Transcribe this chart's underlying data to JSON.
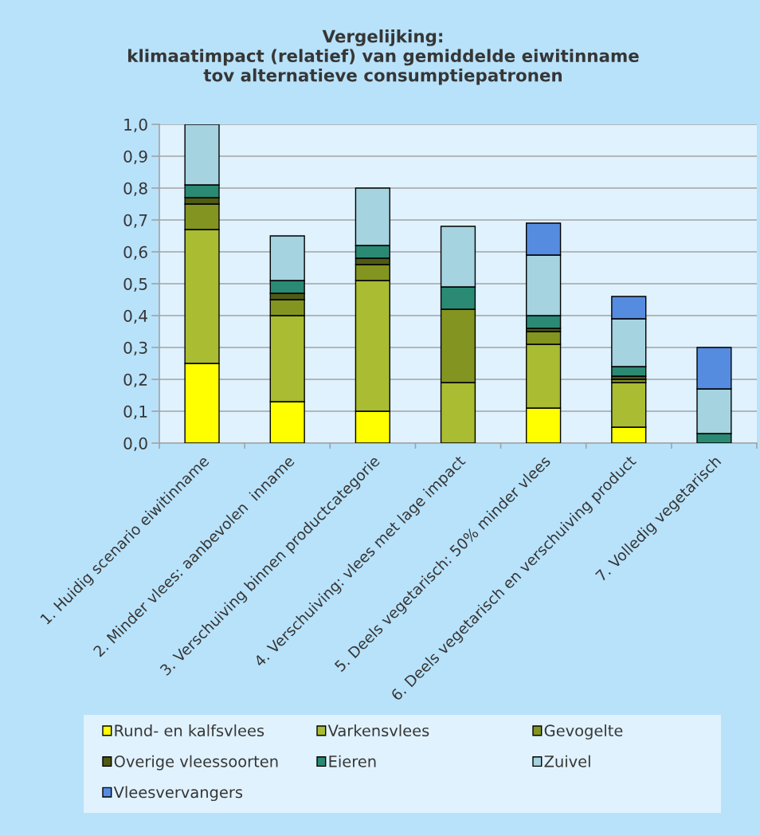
{
  "chart_data": {
    "type": "bar",
    "stacked": true,
    "title": "Vergelijking:\nklimaatimpact (relatief) van gemiddelde eiwitinname\ntov alternatieve consumptiepatronen",
    "categories": [
      "1. Huidig scenario eiwitinname",
      "2. Minder vlees: aanbevolen  inname",
      "3. Verschuiving binnen productcategorie",
      "4. Verschuiving: vlees met lage impact",
      "5. Deels vegetarisch: 50% minder vlees",
      "6. Deels vegetarisch en verschuiving product",
      "7. Volledig vegetarisch"
    ],
    "series": [
      {
        "name": "Rund- en kalfsvlees",
        "color": "#ffff00",
        "values": [
          0.25,
          0.13,
          0.1,
          null,
          0.11,
          0.05,
          null
        ]
      },
      {
        "name": "Varkensvlees",
        "color": "#a9bc32",
        "values": [
          0.42,
          0.27,
          0.41,
          0.19,
          0.2,
          0.14,
          null
        ]
      },
      {
        "name": "Gevogelte",
        "color": "#849420",
        "values": [
          0.08,
          0.05,
          0.05,
          0.23,
          0.04,
          0.01,
          null
        ]
      },
      {
        "name": "Overige vleessoorten",
        "color": "#4f5a14",
        "values": [
          0.02,
          0.02,
          0.02,
          null,
          0.01,
          0.01,
          null
        ]
      },
      {
        "name": "Eieren",
        "color": "#2a8a74",
        "values": [
          0.04,
          0.04,
          0.04,
          0.07,
          0.04,
          0.03,
          0.03
        ]
      },
      {
        "name": "Zuivel",
        "color": "#a5d3df",
        "values": [
          0.19,
          0.14,
          0.18,
          0.19,
          0.19,
          0.15,
          0.14
        ]
      },
      {
        "name": "Vleesvervangers",
        "color": "#558ce0",
        "values": [
          null,
          null,
          null,
          null,
          0.1,
          0.07,
          0.13
        ]
      }
    ],
    "ylim": [
      0,
      1
    ],
    "yticks": [
      {
        "value": 0,
        "label": "0,0"
      },
      {
        "value": 0.1,
        "label": "0,1"
      },
      {
        "value": 0.2,
        "label": "0,2"
      },
      {
        "value": 0.3,
        "label": "0,3"
      },
      {
        "value": 0.4,
        "label": "0,4"
      },
      {
        "value": 0.5,
        "label": "0,5"
      },
      {
        "value": 0.6,
        "label": "0,6"
      },
      {
        "value": 0.7,
        "label": "0,7"
      },
      {
        "value": 0.8,
        "label": "0,8"
      },
      {
        "value": 0.9,
        "label": "0,9"
      },
      {
        "value": 1.0,
        "label": "1,0"
      }
    ],
    "grid": "y",
    "legend": "bottom"
  }
}
